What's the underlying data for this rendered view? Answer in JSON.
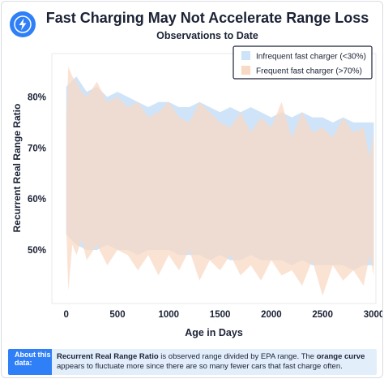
{
  "header": {
    "title": "Fast Charging May Not Accelerate Range Loss",
    "subtitle": "Observations to Date",
    "logo_icon": "lightning-bolt-icon"
  },
  "chart_data": {
    "type": "area",
    "title": "Fast Charging May Not Accelerate Range Loss",
    "subtitle": "Observations to Date",
    "xlabel": "Age in Days",
    "ylabel": "Recurrent Real Range Ratio",
    "xlim": [
      -140,
      3020
    ],
    "ylim": [
      0.395,
      0.885
    ],
    "x_ticks": [
      0,
      500,
      1000,
      1500,
      2000,
      2500,
      3000
    ],
    "x_tick_labels": [
      "0",
      "500",
      "1000",
      "1500",
      "2000",
      "2500",
      "3000"
    ],
    "y_ticks": [
      0.5,
      0.6,
      0.7,
      0.8
    ],
    "y_tick_labels": [
      "50%",
      "60%",
      "70%",
      "80%"
    ],
    "grid": false,
    "legend_position": "top-right",
    "series": [
      {
        "name": "Infrequent fast charger (<30%)",
        "color": "#cce3f8",
        "x": [
          0,
          100,
          200,
          300,
          400,
          500,
          600,
          700,
          800,
          900,
          1000,
          1100,
          1200,
          1300,
          1400,
          1500,
          1600,
          1700,
          1800,
          1900,
          2000,
          2100,
          2200,
          2300,
          2400,
          2500,
          2600,
          2700,
          2800,
          2900,
          3000
        ],
        "upper": [
          0.82,
          0.84,
          0.81,
          0.82,
          0.8,
          0.81,
          0.8,
          0.79,
          0.78,
          0.79,
          0.79,
          0.78,
          0.78,
          0.79,
          0.78,
          0.77,
          0.78,
          0.77,
          0.78,
          0.77,
          0.76,
          0.77,
          0.76,
          0.77,
          0.76,
          0.76,
          0.75,
          0.76,
          0.75,
          0.75,
          0.75
        ],
        "lower": [
          0.53,
          0.51,
          0.5,
          0.5,
          0.51,
          0.5,
          0.5,
          0.49,
          0.5,
          0.5,
          0.5,
          0.49,
          0.49,
          0.49,
          0.48,
          0.49,
          0.48,
          0.48,
          0.49,
          0.48,
          0.48,
          0.48,
          0.47,
          0.48,
          0.47,
          0.47,
          0.47,
          0.47,
          0.46,
          0.47,
          0.47
        ]
      },
      {
        "name": "Frequent fast charger (>70%)",
        "color": "#f9d8c4",
        "x": [
          0,
          20,
          60,
          100,
          150,
          200,
          300,
          400,
          500,
          600,
          700,
          800,
          900,
          1000,
          1100,
          1200,
          1300,
          1400,
          1500,
          1600,
          1700,
          1800,
          1900,
          2000,
          2100,
          2200,
          2300,
          2400,
          2500,
          2600,
          2700,
          2800,
          2900,
          2960,
          3000
        ],
        "upper": [
          0.75,
          0.86,
          0.84,
          0.83,
          0.81,
          0.8,
          0.83,
          0.79,
          0.8,
          0.78,
          0.79,
          0.76,
          0.77,
          0.79,
          0.76,
          0.75,
          0.79,
          0.77,
          0.75,
          0.74,
          0.77,
          0.73,
          0.76,
          0.74,
          0.79,
          0.72,
          0.77,
          0.73,
          0.74,
          0.72,
          0.76,
          0.73,
          0.74,
          0.68,
          0.73
        ],
        "lower": [
          0.55,
          0.42,
          0.51,
          0.49,
          0.52,
          0.48,
          0.51,
          0.47,
          0.5,
          0.49,
          0.46,
          0.49,
          0.45,
          0.49,
          0.46,
          0.5,
          0.44,
          0.48,
          0.46,
          0.49,
          0.45,
          0.47,
          0.44,
          0.48,
          0.45,
          0.46,
          0.43,
          0.48,
          0.41,
          0.47,
          0.44,
          0.46,
          0.43,
          0.49,
          0.45
        ]
      }
    ]
  },
  "footer": {
    "label": "About this data:",
    "term": "Recurrent Real Range Ratio",
    "text_1": " is observed range divided by EPA range. The ",
    "highlight": "orange curve",
    "text_2": " appears to fluctuate more since there are so many fewer cars that fast charge often."
  }
}
